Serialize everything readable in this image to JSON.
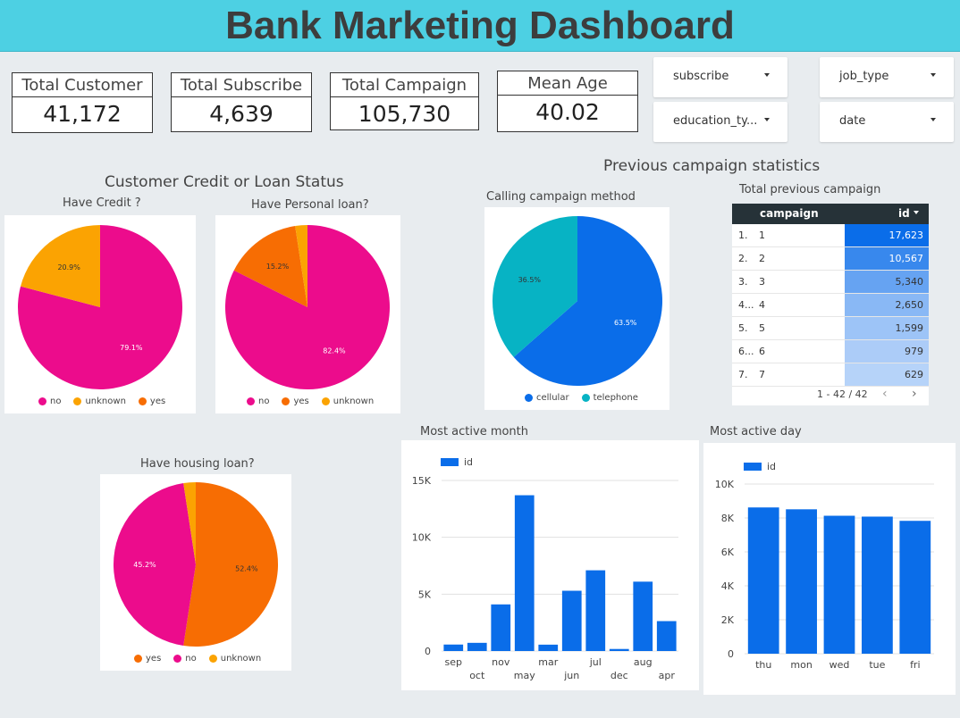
{
  "title": "Bank Marketing Dashboard",
  "kpis": [
    {
      "label": "Total Customer",
      "value": "41,172"
    },
    {
      "label": "Total Subscribe",
      "value": "4,639"
    },
    {
      "label": "Total Campaign",
      "value": "105,730"
    },
    {
      "label": "Mean Age",
      "value": "40.02"
    }
  ],
  "filters": [
    {
      "label": "subscribe"
    },
    {
      "label": "job_type"
    },
    {
      "label": "education_ty..."
    },
    {
      "label": "date"
    }
  ],
  "sections": {
    "credit": "Customer Credit or Loan Status",
    "previous": "Previous campaign statistics"
  },
  "colors": {
    "pink": "#ec0c8c",
    "orange_yellow": "#fba302",
    "orange": "#f76d03",
    "blue": "#0a6de9",
    "teal": "#07b3c4"
  },
  "chart_data": [
    {
      "type": "pie",
      "title": "Have Credit ?",
      "slices": [
        {
          "name": "no",
          "value": 79.1,
          "label": "79.1%",
          "color": "#ec0c8c"
        },
        {
          "name": "unknown",
          "value": 20.9,
          "label": "20.9%",
          "color": "#fba302"
        },
        {
          "name": "yes",
          "value": 0.01,
          "label": "",
          "color": "#f76d03"
        }
      ]
    },
    {
      "type": "pie",
      "title": "Have Personal loan?",
      "slices": [
        {
          "name": "no",
          "value": 82.4,
          "label": "82.4%",
          "color": "#ec0c8c"
        },
        {
          "name": "yes",
          "value": 15.2,
          "label": "15.2%",
          "color": "#f76d03"
        },
        {
          "name": "unknown",
          "value": 2.4,
          "label": "",
          "color": "#fba302"
        }
      ]
    },
    {
      "type": "pie",
      "title": "Have housing loan?",
      "slices": [
        {
          "name": "yes",
          "value": 52.4,
          "label": "52.4%",
          "color": "#f76d03"
        },
        {
          "name": "no",
          "value": 45.2,
          "label": "45.2%",
          "color": "#ec0c8c"
        },
        {
          "name": "unknown",
          "value": 2.4,
          "label": "",
          "color": "#fba302"
        }
      ]
    },
    {
      "type": "pie",
      "title": "Calling campaign method",
      "slices": [
        {
          "name": "cellular",
          "value": 63.5,
          "label": "63.5%",
          "color": "#0a6de9"
        },
        {
          "name": "telephone",
          "value": 36.5,
          "label": "36.5%",
          "color": "#07b3c4"
        }
      ]
    },
    {
      "type": "table",
      "title": "Total previous campaign",
      "columns": [
        "campaign",
        "id"
      ],
      "rows": [
        {
          "idx": "1.",
          "campaign": "1",
          "id": 17623,
          "id_text": "17,623"
        },
        {
          "idx": "2.",
          "campaign": "2",
          "id": 10567,
          "id_text": "10,567"
        },
        {
          "idx": "3.",
          "campaign": "3",
          "id": 5340,
          "id_text": "5,340"
        },
        {
          "idx": "4...",
          "campaign": "4",
          "id": 2650,
          "id_text": "2,650"
        },
        {
          "idx": "5.",
          "campaign": "5",
          "id": 1599,
          "id_text": "1,599"
        },
        {
          "idx": "6...",
          "campaign": "6",
          "id": 979,
          "id_text": "979"
        },
        {
          "idx": "7.",
          "campaign": "7",
          "id": 629,
          "id_text": "629"
        }
      ],
      "pager": "1 - 42 / 42"
    },
    {
      "type": "bar",
      "title": "Most active month",
      "legend": "id",
      "categories": [
        "sep",
        "oct",
        "nov",
        "may",
        "mar",
        "jun",
        "jul",
        "dec",
        "aug",
        "apr"
      ],
      "values": [
        570,
        720,
        4100,
        13700,
        560,
        5300,
        7100,
        180,
        6100,
        2630
      ],
      "ylim": [
        0,
        15000
      ],
      "yticks": [
        0,
        5000,
        10000,
        15000
      ],
      "ytick_labels": [
        "0",
        "5K",
        "10K",
        "15K"
      ]
    },
    {
      "type": "bar",
      "title": "Most active day",
      "legend": "id",
      "categories": [
        "thu",
        "mon",
        "wed",
        "tue",
        "fri"
      ],
      "values": [
        8620,
        8510,
        8130,
        8080,
        7830
      ],
      "ylim": [
        0,
        10000
      ],
      "yticks": [
        0,
        2000,
        4000,
        6000,
        8000,
        10000
      ],
      "ytick_labels": [
        "0",
        "2K",
        "4K",
        "6K",
        "8K",
        "10K"
      ]
    }
  ]
}
